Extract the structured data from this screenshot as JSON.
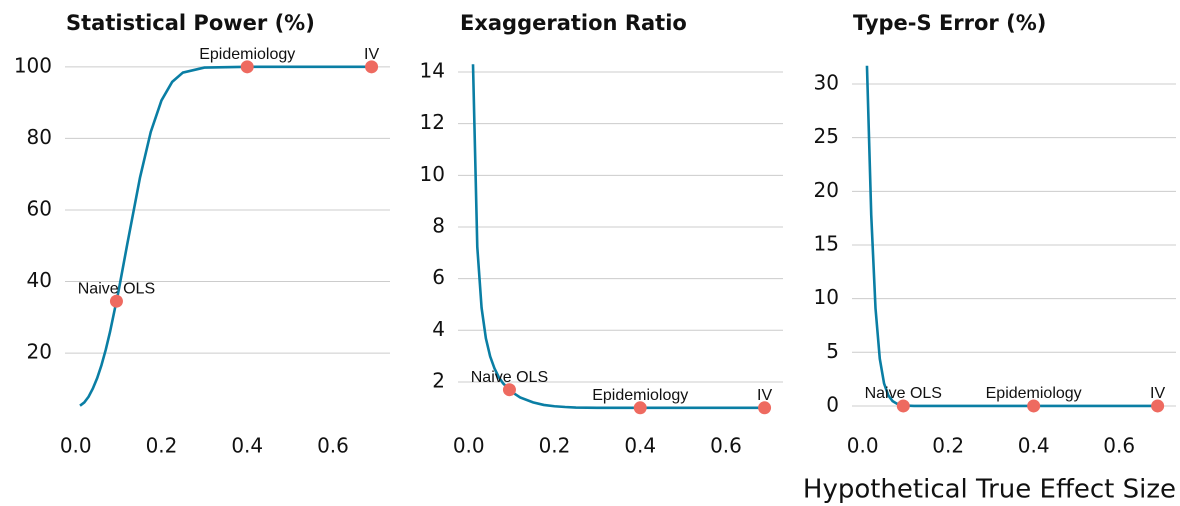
{
  "chart_data": [
    {
      "type": "line",
      "title": "Statistical Power (%)",
      "x": [
        0.01,
        0.02,
        0.03,
        0.04,
        0.05,
        0.06,
        0.07,
        0.08,
        0.1,
        0.12,
        0.15,
        0.175,
        0.2,
        0.225,
        0.25,
        0.3,
        0.4,
        0.5,
        0.6,
        0.69
      ],
      "values": [
        5.3,
        6.2,
        7.8,
        10.1,
        13,
        16.6,
        20.9,
        25.9,
        37.4,
        50.3,
        69.1,
        81.8,
        90.6,
        95.8,
        98.4,
        99.8,
        100,
        100,
        100,
        100
      ],
      "color": "#0a7ea4",
      "points": {
        "x": [
          0.095,
          0.4,
          0.69
        ],
        "values": [
          34.5,
          100,
          100
        ],
        "labels": [
          "Naive OLS",
          "Epidemiology",
          "IV"
        ],
        "color": "#ee6a60"
      },
      "xlim": [
        -0.025,
        0.733
      ],
      "ylim": [
        -1.5,
        107.5
      ],
      "xticks": [
        {
          "value": 0,
          "label": "0.0"
        },
        0.2,
        0.4,
        0.6
      ],
      "yticks": [
        20,
        40,
        60,
        80,
        100
      ],
      "grid": true
    },
    {
      "type": "line",
      "title": "Exaggeration Ratio",
      "x": [
        0.01,
        0.02,
        0.03,
        0.04,
        0.05,
        0.06,
        0.07,
        0.08,
        0.1,
        0.12,
        0.15,
        0.175,
        0.2,
        0.225,
        0.25,
        0.3,
        0.4,
        0.5,
        0.6,
        0.69
      ],
      "values": [
        14.3,
        7.22,
        4.87,
        3.69,
        2.99,
        2.53,
        2.19,
        1.95,
        1.62,
        1.4,
        1.21,
        1.11,
        1.06,
        1.03,
        1.01,
        1,
        1,
        1,
        1,
        1
      ],
      "color": "#0a7ea4",
      "points": {
        "x": [
          0.095,
          0.4,
          0.69
        ],
        "values": [
          1.7,
          1,
          1
        ],
        "labels": [
          "Naive OLS",
          "Epidemiology",
          "IV"
        ],
        "color": "#ee6a60"
      },
      "xlim": [
        -0.025,
        0.733
      ],
      "ylim": [
        0.14,
        15.24
      ],
      "xticks": [
        {
          "value": 0,
          "label": "0.0"
        },
        0.2,
        0.4,
        0.6
      ],
      "yticks": [
        2,
        4,
        6,
        8,
        10,
        12,
        14
      ],
      "grid": true
    },
    {
      "type": "line",
      "title": "Type-S Error (%)",
      "x": [
        0.01,
        0.02,
        0.03,
        0.04,
        0.05,
        0.06,
        0.07,
        0.08,
        0.1,
        0.12,
        0.15,
        0.175,
        0.2,
        0.225,
        0.25,
        0.3,
        0.4,
        0.5,
        0.6,
        0.69
      ],
      "values": [
        31.7,
        17.8,
        9.1,
        4.4,
        2.1,
        0.98,
        0.45,
        0.21,
        0.04,
        0,
        0,
        0,
        0,
        0,
        0,
        0,
        0,
        0,
        0,
        0
      ],
      "color": "#0a7ea4",
      "points": {
        "x": [
          0.095,
          0.4,
          0.69
        ],
        "values": [
          0,
          0,
          0
        ],
        "labels": [
          "Naive OLS",
          "Epidemiology",
          "IV"
        ],
        "color": "#ee6a60"
      },
      "xlim": [
        -0.025,
        0.733
      ],
      "ylim": [
        -2.24,
        34.1
      ],
      "xticks": [
        {
          "value": 0,
          "label": "0.0"
        },
        0.2,
        0.4,
        0.6
      ],
      "yticks": [
        0,
        5,
        10,
        15,
        20,
        25,
        30
      ],
      "grid": true
    }
  ],
  "x_label": "Hypothetical True Effect Size"
}
